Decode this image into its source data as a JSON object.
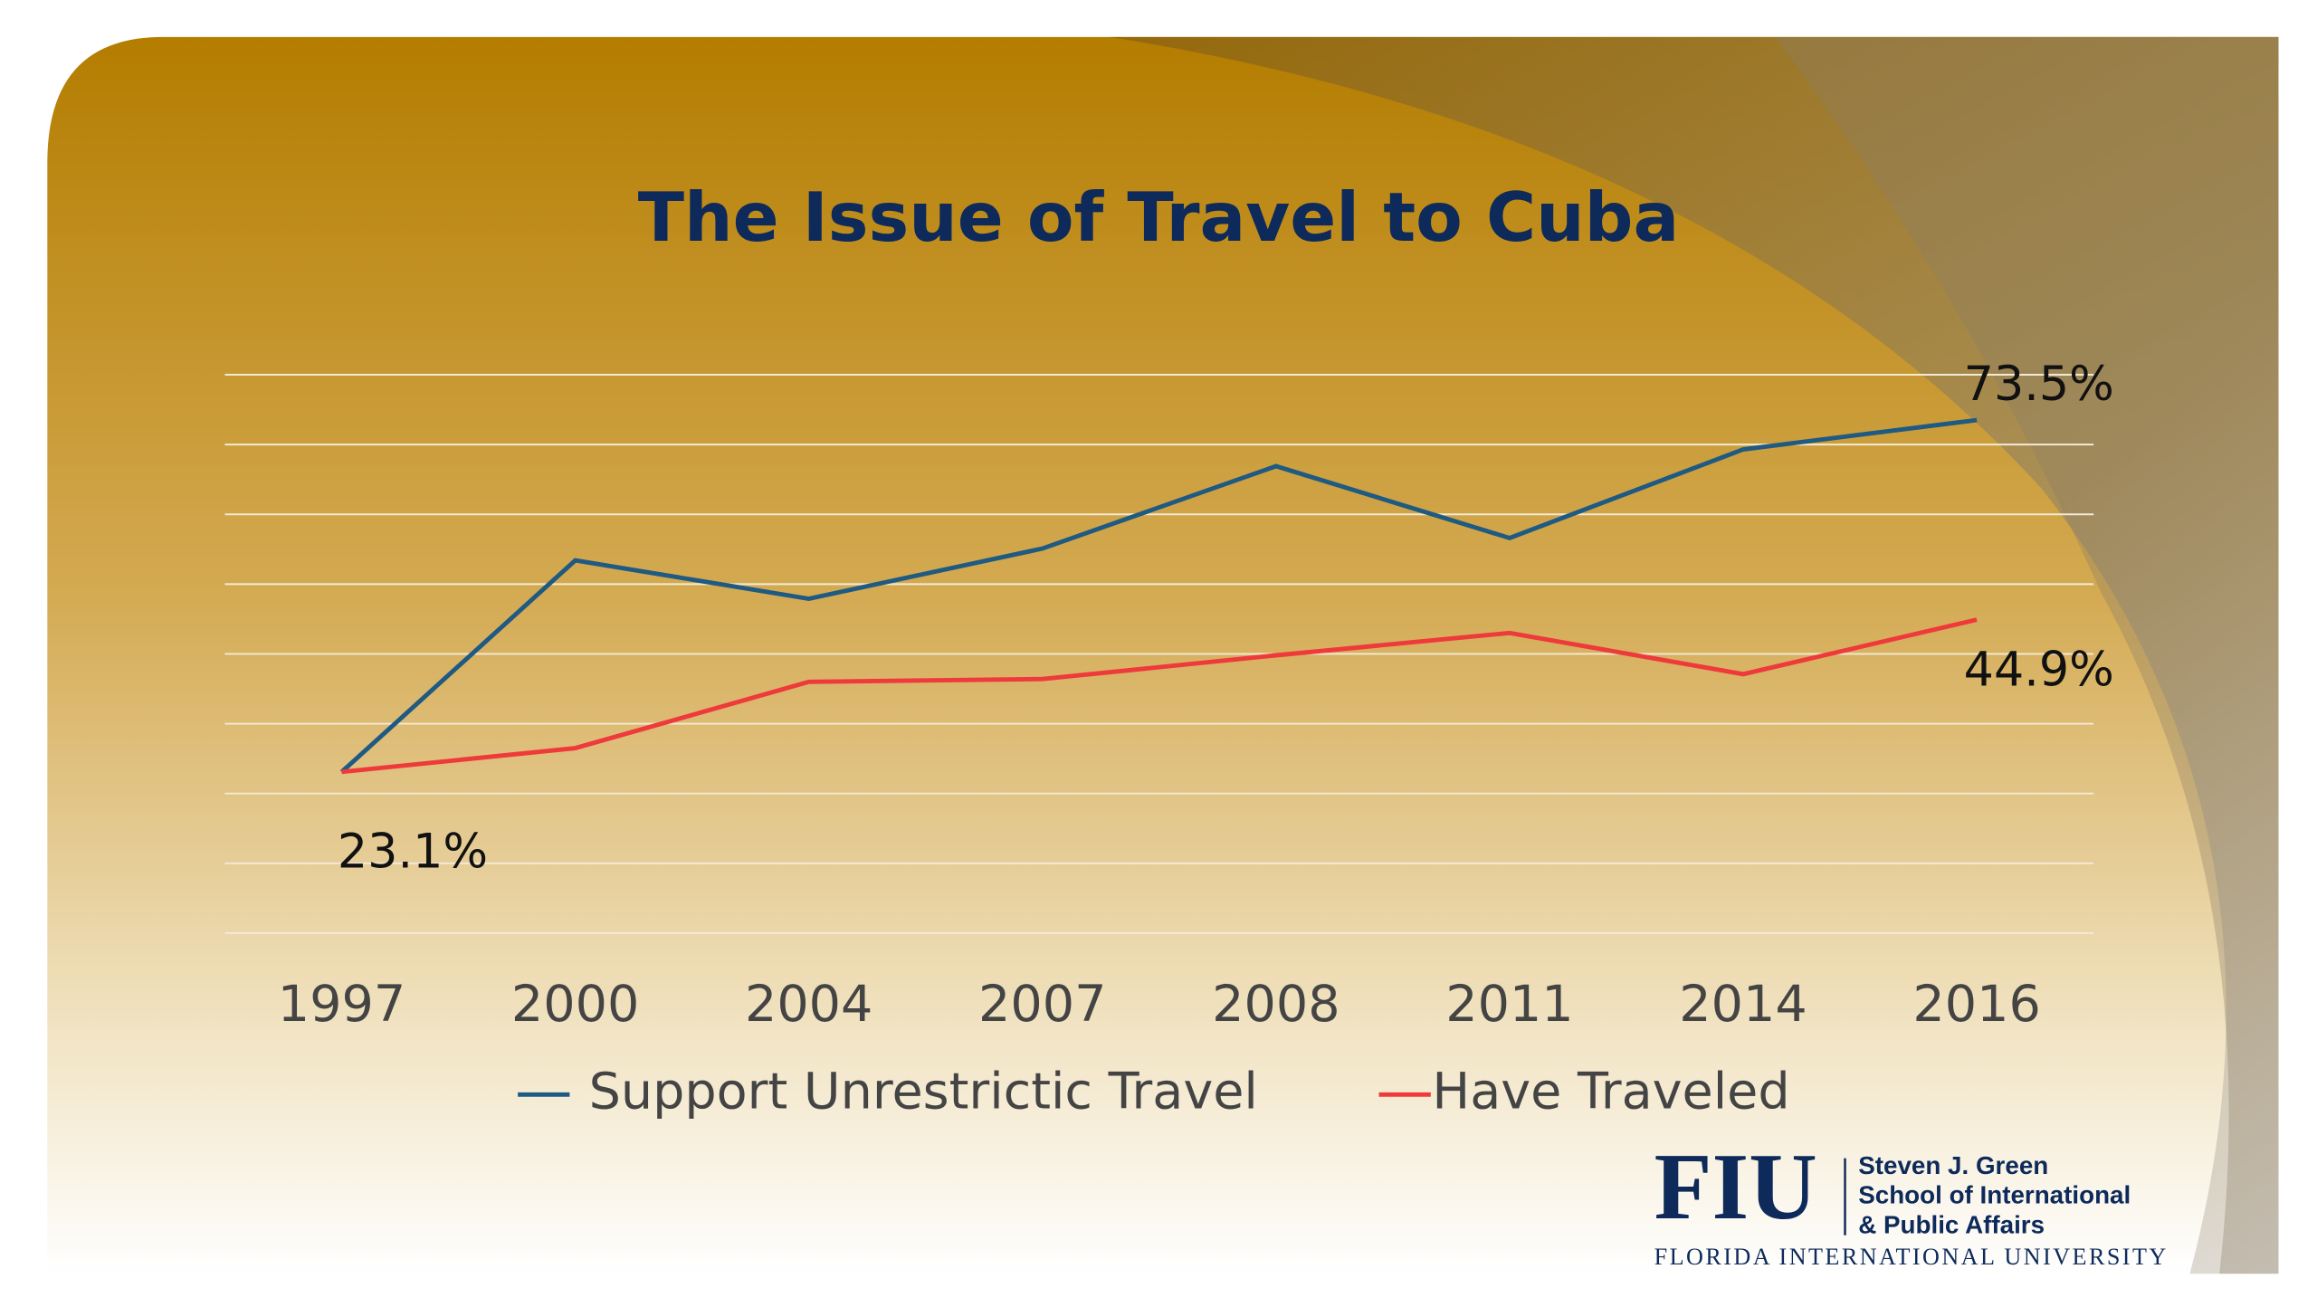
{
  "chart_data": {
    "type": "line",
    "title": "The Issue of Travel to Cuba",
    "categories": [
      "1997",
      "2000",
      "2004",
      "2007",
      "2008",
      "2011",
      "2014",
      "2016"
    ],
    "series": [
      {
        "name": "Support Unrestrictic Travel",
        "color": "#1f5a82",
        "values": [
          23.1,
          53.4,
          47.9,
          55.1,
          66.9,
          56.6,
          69.3,
          73.5
        ],
        "value_labels": [
          null,
          null,
          null,
          null,
          null,
          null,
          null,
          "73.5%"
        ]
      },
      {
        "name": "Have Traveled",
        "color": "#ee3a3a",
        "values": [
          23.1,
          26.5,
          36.0,
          36.4,
          39.8,
          43.0,
          37.1,
          44.9
        ],
        "value_labels": [
          "23.1%",
          null,
          null,
          null,
          null,
          null,
          null,
          "44.9%"
        ]
      }
    ],
    "ylim": [
      0,
      80
    ],
    "yticks": [
      0,
      10,
      20,
      30,
      40,
      50,
      60,
      70,
      80
    ],
    "grid": true,
    "legend": "bottom"
  },
  "logo": {
    "mark": "FIU",
    "lines": [
      "Steven J. Green",
      "School of International",
      "& Public Affairs"
    ],
    "university": "FLORIDA INTERNATIONAL UNIVERSITY"
  }
}
